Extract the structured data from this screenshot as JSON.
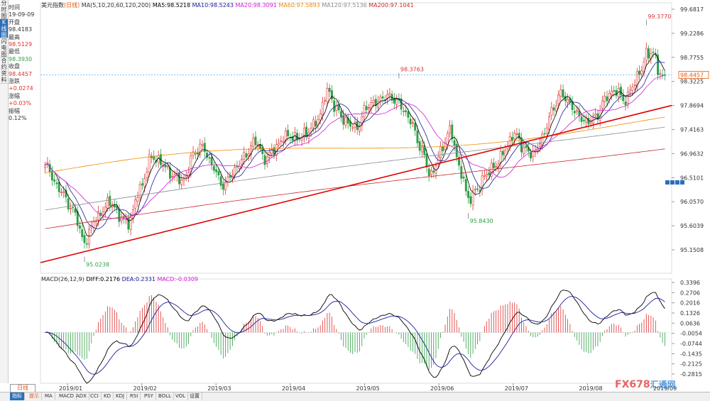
{
  "chart_data": [
    {
      "type": "candlestick",
      "title": "美元指数",
      "period_tag": "(日线)",
      "indicator_text": "MA(5,10,20,60,120,200)",
      "ma": [
        {
          "name": "MA5",
          "text": "MA5:98.5218",
          "color": "#000000"
        },
        {
          "name": "MA10",
          "text": "MA10:98.5243",
          "color": "#1c1c9c"
        },
        {
          "name": "MA20",
          "text": "MA20:98.3091",
          "color": "#d61ad6"
        },
        {
          "name": "MA60",
          "text": "MA60:97.5893",
          "color": "#f08c00"
        },
        {
          "name": "MA120",
          "text": "MA120:97.5136",
          "color": "#868e96"
        },
        {
          "name": "MA200",
          "text": "MA200:97.1041",
          "color": "#c92a2a"
        }
      ],
      "y_ticks": [
        "99.6817",
        "99.2286",
        "98.7755",
        "98.3225",
        "97.8694",
        "97.4163",
        "96.9632",
        "96.5101",
        "96.0570",
        "95.6039",
        "95.1508"
      ],
      "ylim": [
        95.0,
        99.75
      ],
      "x_labels": [
        "2019/01",
        "2019/02",
        "2019/03",
        "2019/04",
        "2019/05",
        "2019/06",
        "2019/07",
        "2019/08",
        "2019/09"
      ],
      "annotations": {
        "high": "99.3770",
        "mid_high": "98.3763",
        "low1": "95.0238",
        "low2": "95.8430"
      },
      "current_price": "98.4457",
      "current_price_value": 98.4457,
      "trendline": {
        "start": [
          0,
          94.91
        ],
        "end": [
          1,
          97.87
        ]
      },
      "anchors": [
        [
          0,
          96.75
        ],
        [
          6,
          96.3
        ],
        [
          12,
          95.9
        ],
        [
          17,
          95.3
        ],
        [
          22,
          95.75
        ],
        [
          28,
          96.05
        ],
        [
          33,
          95.75
        ],
        [
          36,
          95.65
        ],
        [
          41,
          96.3
        ],
        [
          46,
          96.9
        ],
        [
          50,
          96.8
        ],
        [
          55,
          96.55
        ],
        [
          60,
          96.45
        ],
        [
          64,
          96.95
        ],
        [
          68,
          97.1
        ],
        [
          72,
          96.75
        ],
        [
          77,
          96.35
        ],
        [
          81,
          96.6
        ],
        [
          86,
          96.9
        ],
        [
          91,
          97.2
        ],
        [
          95,
          96.85
        ],
        [
          99,
          97.05
        ],
        [
          104,
          97.3
        ],
        [
          109,
          97.25
        ],
        [
          113,
          97.35
        ],
        [
          118,
          97.6
        ],
        [
          122,
          98.15
        ],
        [
          126,
          97.8
        ],
        [
          130,
          97.55
        ],
        [
          135,
          97.45
        ],
        [
          139,
          97.85
        ],
        [
          144,
          97.95
        ],
        [
          148,
          98.05
        ],
        [
          152,
          97.95
        ],
        [
          158,
          97.6
        ],
        [
          162,
          97.1
        ],
        [
          167,
          96.55
        ],
        [
          171,
          97.0
        ],
        [
          175,
          97.4
        ],
        [
          180,
          96.6
        ],
        [
          183,
          96.1
        ],
        [
          187,
          96.3
        ],
        [
          191,
          96.6
        ],
        [
          195,
          96.75
        ],
        [
          199,
          97.05
        ],
        [
          203,
          97.35
        ],
        [
          207,
          97.05
        ],
        [
          211,
          96.95
        ],
        [
          215,
          97.25
        ],
        [
          219,
          97.75
        ],
        [
          223,
          98.1
        ],
        [
          227,
          97.9
        ],
        [
          230,
          97.7
        ],
        [
          234,
          97.55
        ],
        [
          238,
          97.65
        ],
        [
          243,
          98.05
        ],
        [
          247,
          98.15
        ],
        [
          251,
          97.95
        ],
        [
          254,
          98.25
        ],
        [
          258,
          98.55
        ],
        [
          260,
          98.85
        ],
        [
          263,
          98.85
        ],
        [
          266,
          98.45
        ],
        [
          268,
          98.35
        ]
      ],
      "macd": {
        "text_label": "MACD(26,12,9)",
        "diff_text": "DIFF:0.2176",
        "dea_text": "DEA:0.2331",
        "macd_text": "MACD:-0.0309",
        "y_ticks": [
          "0.3396",
          "0.2706",
          "0.2016",
          "0.1326",
          "0.0636",
          "-0.0054",
          "-0.0744",
          "-0.1435",
          "-0.2125",
          "-0.2815"
        ],
        "ylim": [
          -0.33,
          0.35
        ]
      }
    }
  ],
  "left_tabs": [
    "分时图",
    "K线图",
    "闪电图",
    "合约资料"
  ],
  "info_panel": {
    "time_label": "时间",
    "time_value": "19-09-09",
    "open_label": "开盘",
    "open_value": "98.4183",
    "high_label": "最高",
    "high_value": "98.5129",
    "low_label": "最低",
    "low_value": "98.3930",
    "close_label": "收盘",
    "close_value": "98.4457",
    "change_label": "涨跌",
    "change_value": "+0.0274",
    "pct_label": "涨幅",
    "pct_value": "+0.03%",
    "amp_label": "振幅",
    "amp_value": "0.12%"
  },
  "bottom": {
    "period": "日线",
    "tabs": [
      "指标",
      "提示",
      "MA",
      "MACD",
      "ADX",
      "CCI",
      "KD",
      "KDJ",
      "RSI",
      "PSY",
      "BOLL",
      "VOL",
      "设置"
    ]
  },
  "watermark": {
    "brand": "FX678",
    "brand2": "汇通网"
  }
}
